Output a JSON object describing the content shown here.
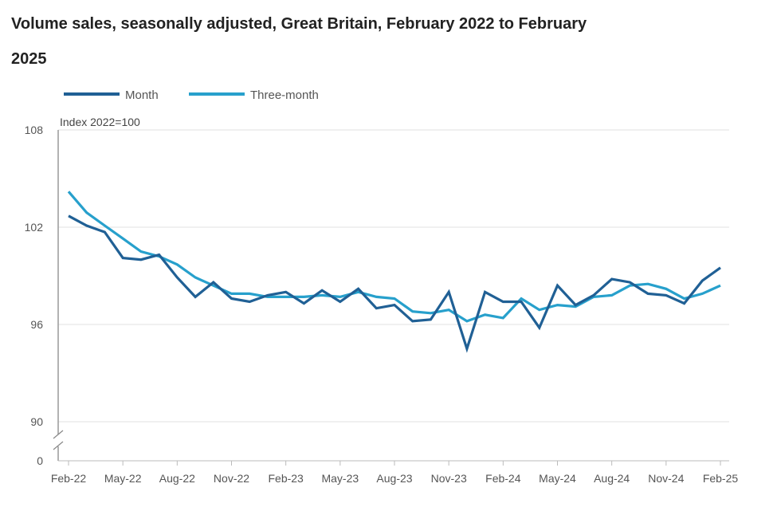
{
  "chart_data": {
    "type": "line",
    "title": "Volume sales, seasonally adjusted, Great Britain, February 2022 to February 2025",
    "ylabel": "Index 2022=100",
    "xlabel": "",
    "ylim": [
      90,
      108
    ],
    "y_ticks": [
      "108",
      "102",
      "96",
      "90",
      "0"
    ],
    "y_axis_break": true,
    "grid": true,
    "legend": "top-left",
    "x_tick_labels": [
      "Feb-22",
      "May-22",
      "Aug-22",
      "Nov-22",
      "Feb-23",
      "May-23",
      "Aug-23",
      "Nov-23",
      "Feb-24",
      "May-24",
      "Aug-24",
      "Nov-24",
      "Feb-25"
    ],
    "x": [
      "Feb-22",
      "Mar-22",
      "Apr-22",
      "May-22",
      "Jun-22",
      "Jul-22",
      "Aug-22",
      "Sep-22",
      "Oct-22",
      "Nov-22",
      "Dec-22",
      "Jan-23",
      "Feb-23",
      "Mar-23",
      "Apr-23",
      "May-23",
      "Jun-23",
      "Jul-23",
      "Aug-23",
      "Sep-23",
      "Oct-23",
      "Nov-23",
      "Dec-23",
      "Jan-24",
      "Feb-24",
      "Mar-24",
      "Apr-24",
      "May-24",
      "Jun-24",
      "Jul-24",
      "Aug-24",
      "Sep-24",
      "Oct-24",
      "Nov-24",
      "Dec-24",
      "Jan-25",
      "Feb-25"
    ],
    "series": [
      {
        "name": "Month",
        "color": "#206095",
        "values": [
          102.7,
          102.1,
          101.7,
          100.1,
          100.0,
          100.3,
          98.9,
          97.7,
          98.6,
          97.6,
          97.4,
          97.8,
          98.0,
          97.3,
          98.1,
          97.4,
          98.2,
          97.0,
          97.2,
          96.2,
          96.3,
          98.0,
          94.5,
          98.0,
          97.4,
          97.4,
          95.8,
          98.4,
          97.2,
          97.8,
          98.8,
          98.6,
          97.9,
          97.8,
          97.3,
          98.7,
          99.5
        ]
      },
      {
        "name": "Three-month",
        "color": "#27a0cc",
        "values": [
          104.2,
          102.9,
          102.1,
          101.3,
          100.5,
          100.2,
          99.7,
          98.9,
          98.4,
          97.9,
          97.9,
          97.7,
          97.7,
          97.7,
          97.8,
          97.7,
          98.0,
          97.7,
          97.6,
          96.8,
          96.7,
          96.9,
          96.2,
          96.6,
          96.4,
          97.6,
          96.9,
          97.2,
          97.1,
          97.7,
          97.8,
          98.4,
          98.5,
          98.2,
          97.6,
          97.9,
          98.4
        ]
      }
    ]
  }
}
